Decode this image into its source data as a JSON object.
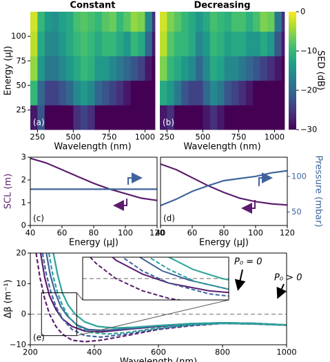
{
  "chart_data": [
    {
      "type": "heatmap",
      "title": "Constant",
      "panel_label": "(a)",
      "xlabel": "Wavelength (nm)",
      "ylabel": "Energy (μJ)",
      "colormap": "viridis",
      "xlim": [
        200,
        1070
      ],
      "ylim": [
        5,
        125
      ],
      "xticks": [
        250,
        500,
        750,
        1000
      ],
      "yticks": [
        25,
        50,
        75,
        100
      ],
      "xbins": [
        200,
        250,
        300,
        350,
        400,
        450,
        500,
        550,
        600,
        650,
        700,
        750,
        800,
        850,
        900,
        950,
        1000,
        1050,
        1070
      ],
      "ybins": [
        5,
        30,
        55,
        80,
        105,
        125
      ],
      "z": [
        [
          -28,
          -22,
          -30,
          -30,
          -30,
          -30,
          -26,
          -24,
          -26,
          -30,
          -30,
          -30,
          -30,
          -30,
          -30,
          -30,
          -30,
          -30
        ],
        [
          -10,
          -20,
          -24,
          -24,
          -22,
          -20,
          -16,
          -14,
          -16,
          -20,
          -22,
          -24,
          -26,
          -28,
          -30,
          -30,
          -30,
          -30
        ],
        [
          -5,
          -14,
          -18,
          -18,
          -16,
          -14,
          -12,
          -10,
          -11,
          -14,
          -14,
          -16,
          -18,
          -20,
          -22,
          -24,
          -28,
          -30
        ],
        [
          -3,
          -12,
          -16,
          -16,
          -14,
          -12,
          -10,
          -9,
          -10,
          -12,
          -10,
          -10,
          -12,
          -14,
          -10,
          -12,
          -20,
          -28
        ],
        [
          -2,
          -10,
          -14,
          -15,
          -13,
          -12,
          -9,
          -8,
          -9,
          -10,
          -8,
          -7,
          -10,
          -8,
          -5,
          -6,
          -16,
          -26
        ]
      ]
    },
    {
      "type": "heatmap",
      "title": "Decreasing",
      "panel_label": "(b)",
      "xlabel": "Wavelength (nm)",
      "colormap": "viridis",
      "xlim": [
        200,
        1070
      ],
      "ylim": [
        5,
        125
      ],
      "xticks": [
        250,
        500,
        750,
        1000
      ],
      "xbins": [
        200,
        250,
        300,
        350,
        400,
        450,
        500,
        550,
        600,
        650,
        700,
        750,
        800,
        850,
        900,
        950,
        1000,
        1050,
        1070
      ],
      "ybins": [
        5,
        30,
        55,
        80,
        105,
        125
      ],
      "z": [
        [
          -28,
          -26,
          -30,
          -30,
          -30,
          -30,
          -28,
          -26,
          -28,
          -30,
          -30,
          -30,
          -30,
          -30,
          -30,
          -30,
          -30,
          -30
        ],
        [
          -12,
          -14,
          -18,
          -22,
          -24,
          -24,
          -20,
          -16,
          -18,
          -22,
          -24,
          -26,
          -28,
          -30,
          -30,
          -30,
          -30,
          -30
        ],
        [
          -6,
          -10,
          -12,
          -14,
          -16,
          -20,
          -16,
          -12,
          -13,
          -16,
          -16,
          -18,
          -20,
          -22,
          -24,
          -26,
          -28,
          -30
        ],
        [
          -3,
          -8,
          -10,
          -10,
          -12,
          -16,
          -14,
          -10,
          -11,
          -13,
          -12,
          -12,
          -14,
          -14,
          -12,
          -14,
          -22,
          -28
        ],
        [
          -2,
          -6,
          -8,
          -10,
          -12,
          -14,
          -12,
          -9,
          -10,
          -11,
          -9,
          -9,
          -11,
          -9,
          -6,
          -7,
          -18,
          -26
        ]
      ],
      "colorbar": {
        "label": "SED (dB)",
        "clim": [
          -30,
          0
        ],
        "ticks": [
          0,
          {
            "value": -10,
            "label": "−10"
          },
          {
            "value": -20,
            "label": "−20"
          },
          {
            "value": -30,
            "label": "−30"
          }
        ]
      }
    },
    {
      "type": "line",
      "panel_label": "(c)",
      "xlabel": "Energy (μJ)",
      "ylabel": "SCL (m)",
      "xlim": [
        40,
        120
      ],
      "ylim": [
        0,
        3
      ],
      "xticks": [
        40,
        60,
        80,
        100,
        120
      ],
      "yticks": [
        0,
        1,
        2,
        3
      ],
      "y2lim": [
        31,
        127
      ],
      "series": [
        {
          "color": "#5c1c6e",
          "x": [
            40,
            50,
            60,
            70,
            80,
            90,
            100,
            110,
            120
          ],
          "values": [
            2.95,
            2.75,
            2.45,
            2.15,
            1.85,
            1.6,
            1.4,
            1.2,
            1.1
          ]
        },
        {
          "color": "#3f649c",
          "axis": "y2",
          "x": [
            40,
            120
          ],
          "values": [
            82,
            82
          ]
        }
      ]
    },
    {
      "type": "line",
      "panel_label": "(d)",
      "xlabel": "Energy (μJ)",
      "y2label": "Pressure (mbar)",
      "xlim": [
        40,
        120
      ],
      "ylim": [
        0,
        3
      ],
      "xticks": [
        40,
        60,
        80,
        100,
        120
      ],
      "y2lim": [
        31,
        127
      ],
      "y2ticks": [
        50,
        100
      ],
      "series": [
        {
          "color": "#5c1c6e",
          "x": [
            40,
            50,
            60,
            70,
            80,
            90,
            100,
            110,
            120
          ],
          "values": [
            2.7,
            2.45,
            2.1,
            1.75,
            1.45,
            1.2,
            1.05,
            0.95,
            0.9
          ]
        },
        {
          "color": "#3f649c",
          "axis": "y2",
          "x": [
            40,
            50,
            60,
            70,
            80,
            90,
            100,
            110,
            120
          ],
          "values": [
            59,
            68,
            79,
            87,
            94,
            97,
            100,
            105,
            108
          ]
        }
      ]
    },
    {
      "type": "line",
      "panel_label": "(e)",
      "xlabel": "Wavelength (nm)",
      "ylabel": "Δβ (m⁻¹)",
      "xlim": [
        200,
        1000
      ],
      "ylim": [
        -10,
        20
      ],
      "xticks": [
        200,
        400,
        600,
        800,
        1000
      ],
      "yticks": [
        {
          "value": -10,
          "label": "−10"
        },
        0,
        10,
        20
      ],
      "hline": 0,
      "inset": {
        "xlim": [
          235,
          345
        ],
        "ylim": [
          -7,
          7
        ]
      },
      "annotations": [
        "P₀ = 0",
        "P₀ > 0"
      ],
      "series": [
        {
          "color": "#5c1c6e",
          "dash": false,
          "x": [
            232,
            245,
            260,
            280,
            300,
            330,
            370,
            420,
            500,
            600,
            700,
            800,
            900,
            1000
          ],
          "values": [
            20,
            12,
            6,
            1.5,
            -1.5,
            -4,
            -5.5,
            -5.8,
            -5,
            -4,
            -3.2,
            -2.8,
            -3,
            -3.5
          ]
        },
        {
          "color": "#5c1c6e",
          "dash": true,
          "x": [
            218,
            230,
            245,
            260,
            280,
            300,
            330,
            370,
            420,
            500,
            600,
            700,
            800,
            900,
            1000
          ],
          "values": [
            20,
            12,
            5,
            0,
            -4,
            -6.5,
            -8.5,
            -9,
            -8.5,
            -7,
            -5,
            -3.8,
            -3,
            -3.2,
            -3.6
          ]
        },
        {
          "color": "#3f649c",
          "dash": true,
          "x": [
            238,
            250,
            265,
            280,
            300,
            330,
            370,
            420,
            500,
            600,
            700,
            800,
            900,
            1000
          ],
          "values": [
            20,
            13,
            7,
            2.5,
            -1.5,
            -5,
            -7,
            -7.5,
            -6.5,
            -4.8,
            -3.6,
            -3,
            -3.2,
            -3.6
          ]
        },
        {
          "color": "#3f649c",
          "dash": false,
          "x": [
            250,
            262,
            278,
            295,
            315,
            345,
            380,
            430,
            500,
            600,
            700,
            800,
            900,
            1000
          ],
          "values": [
            20,
            13,
            7,
            2.5,
            -0.5,
            -3.5,
            -5,
            -5.3,
            -4.8,
            -3.8,
            -3.1,
            -2.8,
            -3,
            -3.5
          ]
        },
        {
          "color": "#2aa39a",
          "dash": true,
          "x": [
            258,
            270,
            285,
            300,
            320,
            350,
            390,
            440,
            500,
            600,
            700,
            800,
            900,
            1000
          ],
          "values": [
            20,
            13,
            7,
            3,
            -1,
            -4,
            -6,
            -6.5,
            -6,
            -4.5,
            -3.5,
            -3,
            -3.2,
            -3.6
          ]
        },
        {
          "color": "#2aa39a",
          "dash": false,
          "x": [
            272,
            285,
            300,
            318,
            340,
            370,
            410,
            460,
            520,
            600,
            700,
            800,
            900,
            1000
          ],
          "values": [
            20,
            13,
            7,
            3,
            0,
            -2.5,
            -4,
            -4.5,
            -4.3,
            -3.7,
            -3.1,
            -2.8,
            -3,
            -3.5
          ]
        }
      ]
    }
  ]
}
